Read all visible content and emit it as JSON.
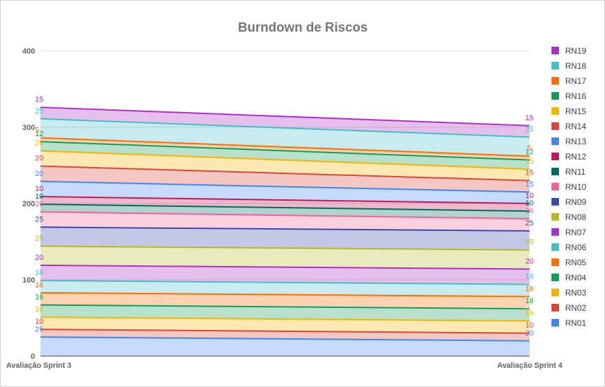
{
  "chart_data": {
    "type": "area",
    "stacked": true,
    "title": "Burndown de Riscos",
    "xlabel": "",
    "ylabel": "",
    "categories": [
      "Avaliação Sprint 3",
      "Avaliação Sprint 4"
    ],
    "ylim": [
      0,
      400
    ],
    "yticks": [
      "0",
      "100",
      "200",
      "300",
      "400"
    ],
    "grid": true,
    "legend_position": "right",
    "series": [
      {
        "name": "RN01",
        "values": [
          25,
          20
        ],
        "color": "#4285f4"
      },
      {
        "name": "RN02",
        "values": [
          10,
          10
        ],
        "color": "#db4437"
      },
      {
        "name": "RN03",
        "values": [
          16,
          16
        ],
        "color": "#f4b400"
      },
      {
        "name": "RN04",
        "values": [
          16,
          16
        ],
        "color": "#0f9d58"
      },
      {
        "name": "RN05",
        "values": [
          16,
          16
        ],
        "color": "#ff6d00"
      },
      {
        "name": "RN06",
        "values": [
          16,
          16
        ],
        "color": "#46bdc6"
      },
      {
        "name": "RN07",
        "values": [
          20,
          20
        ],
        "color": "#ab30c4"
      },
      {
        "name": "RN08",
        "values": [
          25,
          25
        ],
        "color": "#b5b823"
      },
      {
        "name": "RN09",
        "values": [
          25,
          25
        ],
        "color": "#3949ab"
      },
      {
        "name": "RN10",
        "values": [
          20,
          16
        ],
        "color": "#f06292"
      },
      {
        "name": "RN11",
        "values": [
          10,
          10
        ],
        "color": "#00695c"
      },
      {
        "name": "RN12",
        "values": [
          10,
          10
        ],
        "color": "#c2185b"
      },
      {
        "name": "RN13",
        "values": [
          20,
          15
        ],
        "color": "#4285f4"
      },
      {
        "name": "RN14",
        "values": [
          20,
          15
        ],
        "color": "#db4437"
      },
      {
        "name": "RN15",
        "values": [
          20,
          15
        ],
        "color": "#f4b400"
      },
      {
        "name": "RN16",
        "values": [
          12,
          12
        ],
        "color": "#0f9d58"
      },
      {
        "name": "RN17",
        "values": [
          5,
          5
        ],
        "color": "#ff6d00"
      },
      {
        "name": "RN18",
        "values": [
          25,
          25
        ],
        "color": "#46bdc6"
      },
      {
        "name": "RN19",
        "values": [
          15,
          15
        ],
        "color": "#ab30c4"
      }
    ]
  }
}
